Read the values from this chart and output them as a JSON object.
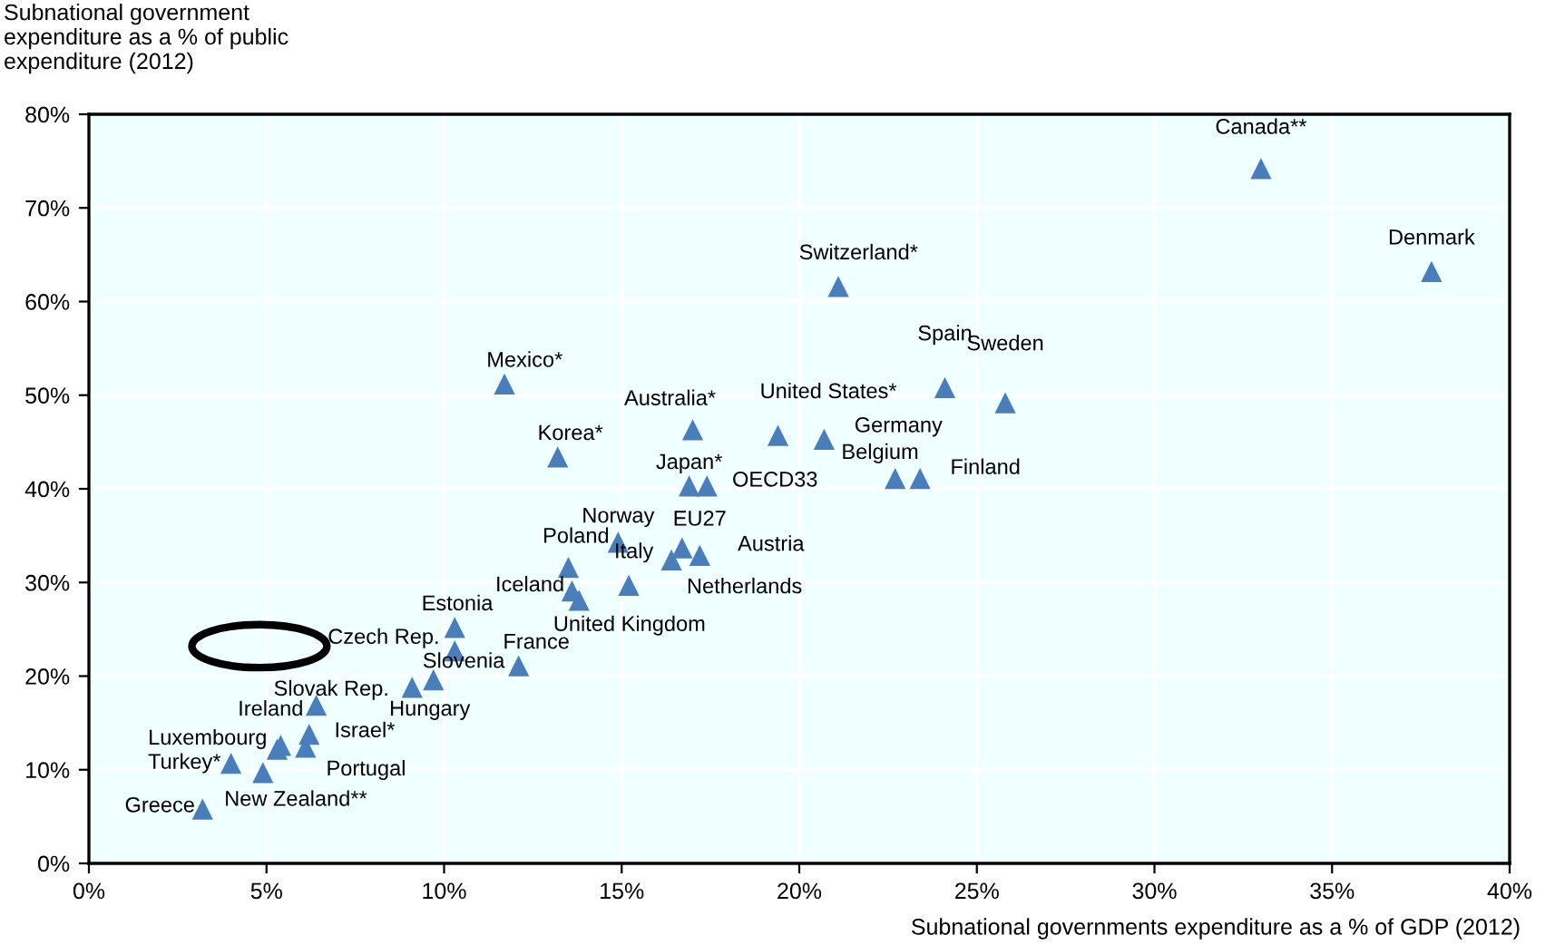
{
  "chart_data": {
    "type": "scatter",
    "ylabel": "Subnational government\nexpenditure as a % of public\nexpenditure (2012)",
    "xlabel": "Subnational governments expenditure as a % of GDP (2012)",
    "x": [
      33.0,
      37.8,
      21.1,
      24.1,
      25.8,
      23.4,
      22.7,
      20.7,
      19.4,
      17.0,
      11.7,
      13.2,
      16.9,
      17.4,
      14.9,
      16.7,
      17.2,
      16.4,
      15.2,
      13.5,
      13.6,
      13.8,
      10.3,
      10.3,
      12.1,
      9.7,
      9.1,
      6.4,
      5.4,
      6.2,
      6.1,
      5.3,
      4.0,
      4.9,
      3.2
    ],
    "series": [
      {
        "color": "#4a7ebb",
        "values": [
          74.2,
          63.2,
          61.6,
          50.8,
          49.2,
          41.1,
          41.1,
          45.3,
          45.7,
          46.3,
          51.2,
          43.4,
          40.3,
          40.3,
          34.3,
          33.7,
          32.9,
          32.4,
          29.7,
          31.6,
          29.1,
          28.1,
          25.2,
          22.7,
          21.1,
          19.6,
          18.8,
          16.9,
          12.6,
          13.8,
          12.4,
          12.2,
          10.7,
          9.7,
          5.8
        ]
      }
    ],
    "annotations": [
      {
        "text": "Canada**",
        "x": 33.0,
        "y": 74.2
      },
      {
        "text": "Denmark",
        "x": 37.8,
        "y": 63.2
      },
      {
        "text": "Switzerland*",
        "x": 21.1,
        "y": 61.6
      },
      {
        "text": "Spain",
        "x": 24.1,
        "y": 50.8
      },
      {
        "text": "Sweden",
        "x": 25.8,
        "y": 49.2
      },
      {
        "text": "Finland",
        "x": 23.4,
        "y": 41.1
      },
      {
        "text": "Belgium",
        "x": 22.7,
        "y": 41.1
      },
      {
        "text": "Germany",
        "x": 20.7,
        "y": 45.3
      },
      {
        "text": "United States*",
        "x": 19.4,
        "y": 45.7
      },
      {
        "text": "Australia*",
        "x": 17.0,
        "y": 46.3
      },
      {
        "text": "Mexico*",
        "x": 11.7,
        "y": 51.2
      },
      {
        "text": "Korea*",
        "x": 13.2,
        "y": 43.4
      },
      {
        "text": "Japan*",
        "x": 16.9,
        "y": 40.3
      },
      {
        "text": "OECD33",
        "x": 17.4,
        "y": 40.3
      },
      {
        "text": "Norway",
        "x": 14.9,
        "y": 34.3
      },
      {
        "text": "EU27",
        "x": 16.7,
        "y": 33.7
      },
      {
        "text": "Austria",
        "x": 17.2,
        "y": 32.9
      },
      {
        "text": "Netherlands",
        "x": 16.4,
        "y": 32.4
      },
      {
        "text": "Italy",
        "x": 15.2,
        "y": 29.7
      },
      {
        "text": "Poland",
        "x": 13.5,
        "y": 31.6
      },
      {
        "text": "Iceland",
        "x": 13.6,
        "y": 29.1
      },
      {
        "text": "United Kingdom",
        "x": 13.8,
        "y": 28.1
      },
      {
        "text": "Estonia",
        "x": 10.3,
        "y": 25.2
      },
      {
        "text": "Czech Rep.",
        "x": 10.3,
        "y": 22.7
      },
      {
        "text": "France",
        "x": 12.1,
        "y": 21.1
      },
      {
        "text": "Slovenia",
        "x": 9.7,
        "y": 19.6
      },
      {
        "text": "Hungary",
        "x": 9.1,
        "y": 18.8
      },
      {
        "text": "Slovak Rep.",
        "x": 6.4,
        "y": 16.9
      },
      {
        "text": "Ireland",
        "x": 5.4,
        "y": 12.6
      },
      {
        "text": "Israel*",
        "x": 6.2,
        "y": 13.8
      },
      {
        "text": "Portugal",
        "x": 6.1,
        "y": 12.4
      },
      {
        "text": "Luxembourg",
        "x": 5.3,
        "y": 12.2
      },
      {
        "text": "Turkey*",
        "x": 4.0,
        "y": 10.7
      },
      {
        "text": "New Zealand**",
        "x": 4.9,
        "y": 9.7
      },
      {
        "text": "Greece",
        "x": 3.2,
        "y": 5.8
      }
    ],
    "xlim": [
      0,
      40
    ],
    "ylim": [
      0,
      80
    ],
    "xticks": [
      {
        "value": 0,
        "label": "0%"
      },
      {
        "value": 5,
        "label": "5%"
      },
      {
        "value": 10,
        "label": "10%"
      },
      {
        "value": 15,
        "label": "15%"
      },
      {
        "value": 20,
        "label": "20%"
      },
      {
        "value": 25,
        "label": "25%"
      },
      {
        "value": 30,
        "label": "30%"
      },
      {
        "value": 35,
        "label": "35%"
      },
      {
        "value": 40,
        "label": "40%"
      }
    ],
    "yticks": [
      {
        "value": 0,
        "label": "0%"
      },
      {
        "value": 10,
        "label": "10%"
      },
      {
        "value": 20,
        "label": "20%"
      },
      {
        "value": 30,
        "label": "30%"
      },
      {
        "value": 40,
        "label": "40%"
      },
      {
        "value": 50,
        "label": "50%"
      },
      {
        "value": 60,
        "label": "60%"
      },
      {
        "value": 70,
        "label": "70%"
      },
      {
        "value": 80,
        "label": "80%"
      }
    ],
    "grid": true,
    "marker": "triangle"
  }
}
